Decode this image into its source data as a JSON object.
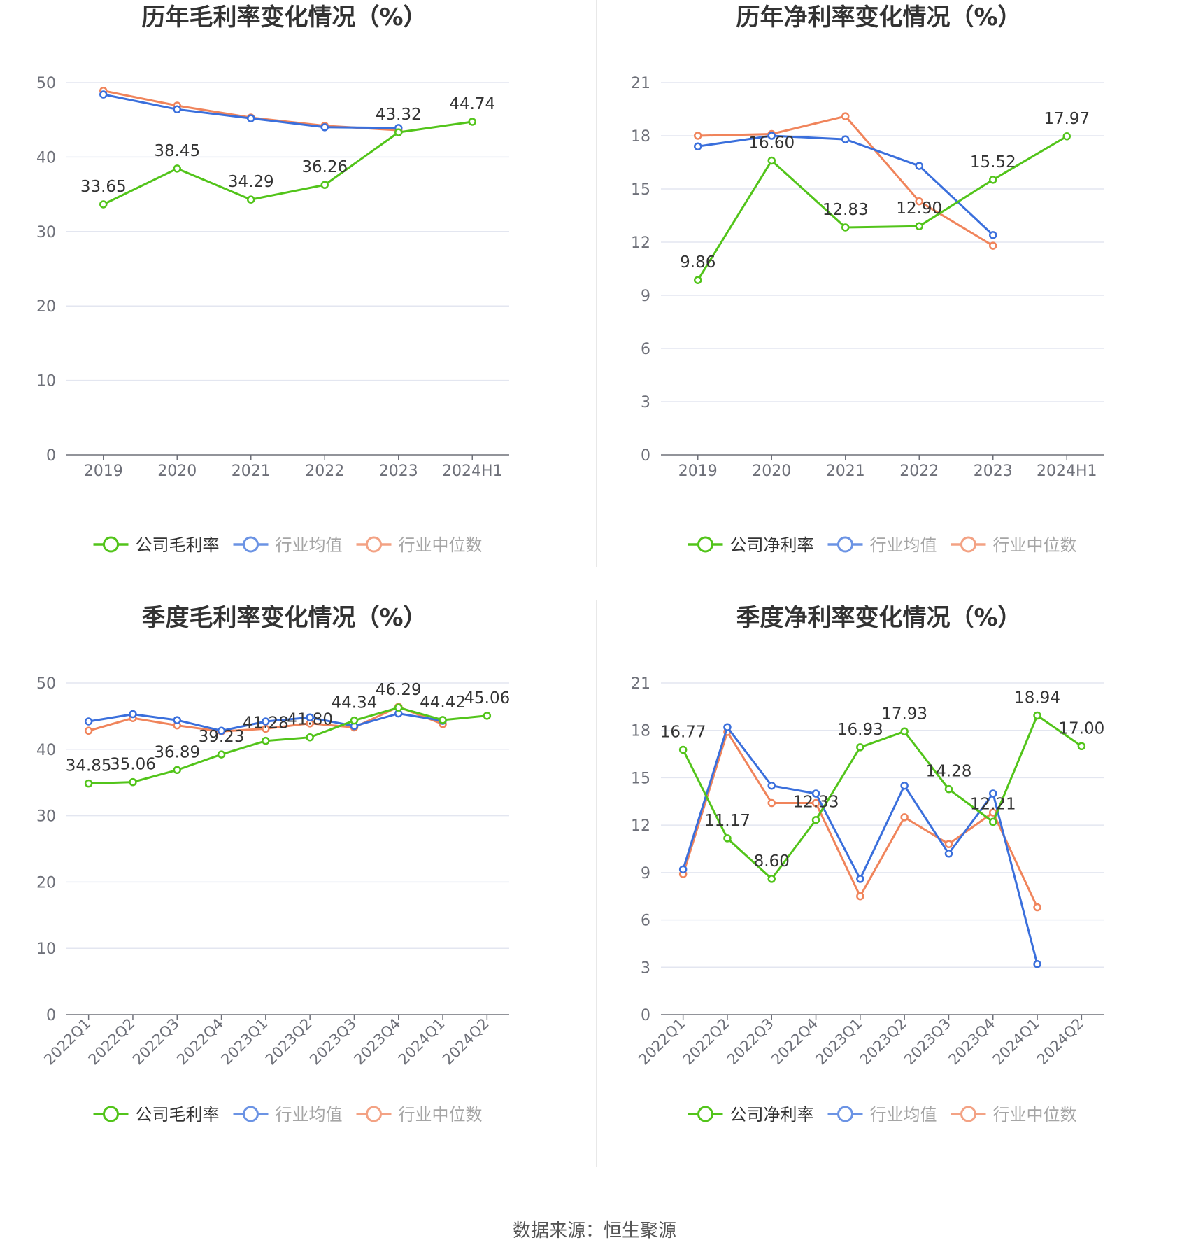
{
  "colors": {
    "company": "#52c41a",
    "avg": "#3a6fdc",
    "median": "#f0845b"
  },
  "source": "数据来源：恒生聚源",
  "chart_data": [
    {
      "type": "line",
      "title": "历年毛利率变化情况（%）",
      "categories": [
        "2019",
        "2020",
        "2021",
        "2022",
        "2023",
        "2024H1"
      ],
      "ylim": [
        0,
        50
      ],
      "yticks": [
        0,
        10,
        20,
        30,
        40,
        50
      ],
      "grid": true,
      "legend_position": "bottom",
      "series": [
        {
          "name": "公司毛利率",
          "key": "company",
          "labels": true,
          "values": [
            33.65,
            38.45,
            34.29,
            36.26,
            43.32,
            44.74
          ]
        },
        {
          "name": "行业均值",
          "key": "avg",
          "values": [
            48.4,
            46.4,
            45.2,
            44.0,
            43.9,
            null
          ]
        },
        {
          "name": "行业中位数",
          "key": "median",
          "values": [
            48.9,
            46.9,
            45.3,
            44.2,
            43.6,
            null
          ]
        }
      ],
      "data_labels": [
        "33.65",
        "38.45",
        "34.29",
        "36.26",
        "43.32",
        "44.74"
      ]
    },
    {
      "type": "line",
      "title": "历年净利率变化情况（%）",
      "categories": [
        "2019",
        "2020",
        "2021",
        "2022",
        "2023",
        "2024H1"
      ],
      "ylim": [
        0,
        21
      ],
      "yticks": [
        0,
        3,
        6,
        9,
        12,
        15,
        18,
        21
      ],
      "grid": true,
      "legend_position": "bottom",
      "series": [
        {
          "name": "公司净利率",
          "key": "company",
          "labels": true,
          "values": [
            9.86,
            16.6,
            12.83,
            12.9,
            15.52,
            17.97
          ]
        },
        {
          "name": "行业均值",
          "key": "avg",
          "values": [
            17.4,
            18.0,
            17.8,
            16.3,
            12.4,
            null
          ]
        },
        {
          "name": "行业中位数",
          "key": "median",
          "values": [
            18.0,
            18.1,
            19.1,
            14.3,
            11.8,
            null
          ]
        }
      ],
      "data_labels": [
        "9.86",
        "16.60",
        "12.83",
        "12.90",
        "15.52",
        "17.97"
      ]
    },
    {
      "type": "line",
      "title": "季度毛利率变化情况（%）",
      "categories": [
        "2022Q1",
        "2022Q2",
        "2022Q3",
        "2022Q4",
        "2023Q1",
        "2023Q2",
        "2023Q3",
        "2023Q4",
        "2024Q1",
        "2024Q2"
      ],
      "ylim": [
        0,
        50
      ],
      "yticks": [
        0,
        10,
        20,
        30,
        40,
        50
      ],
      "grid": true,
      "rotate_x": true,
      "legend_position": "bottom",
      "series": [
        {
          "name": "公司毛利率",
          "key": "company",
          "labels": true,
          "values": [
            34.85,
            35.06,
            36.89,
            39.23,
            41.28,
            41.8,
            44.34,
            46.29,
            44.42,
            45.06
          ]
        },
        {
          "name": "行业均值",
          "key": "avg",
          "values": [
            44.2,
            45.3,
            44.4,
            42.8,
            44.2,
            44.8,
            43.5,
            45.4,
            44.3,
            null
          ]
        },
        {
          "name": "行业中位数",
          "key": "median",
          "values": [
            42.8,
            44.7,
            43.6,
            42.7,
            43.1,
            43.9,
            43.3,
            46.4,
            43.8,
            null
          ]
        }
      ],
      "data_labels": [
        "34.85",
        "35.06",
        "36.89",
        "39.23",
        "41.28",
        "41.80",
        "44.34",
        "46.29",
        "44.42",
        "45.06"
      ]
    },
    {
      "type": "line",
      "title": "季度净利率变化情况（%）",
      "categories": [
        "2022Q1",
        "2022Q2",
        "2022Q3",
        "2022Q4",
        "2023Q1",
        "2023Q2",
        "2023Q3",
        "2023Q4",
        "2024Q1",
        "2024Q2"
      ],
      "ylim": [
        0,
        21
      ],
      "yticks": [
        0,
        3,
        6,
        9,
        12,
        15,
        18,
        21
      ],
      "grid": true,
      "rotate_x": true,
      "legend_position": "bottom",
      "series": [
        {
          "name": "公司净利率",
          "key": "company",
          "labels": true,
          "values": [
            16.77,
            11.17,
            8.6,
            12.33,
            16.93,
            17.93,
            14.28,
            12.21,
            18.94,
            17.0
          ]
        },
        {
          "name": "行业均值",
          "key": "avg",
          "values": [
            9.2,
            18.2,
            14.5,
            14.0,
            8.6,
            14.5,
            10.2,
            14.0,
            3.2,
            null
          ]
        },
        {
          "name": "行业中位数",
          "key": "median",
          "values": [
            8.9,
            17.9,
            13.4,
            13.4,
            7.5,
            12.5,
            10.8,
            12.8,
            6.8,
            null
          ]
        }
      ],
      "data_labels": [
        "16.77",
        "11.17",
        "8.60",
        "12.33",
        "16.93",
        "17.93",
        "14.28",
        "12.21",
        "18.94",
        "17.00"
      ]
    }
  ]
}
